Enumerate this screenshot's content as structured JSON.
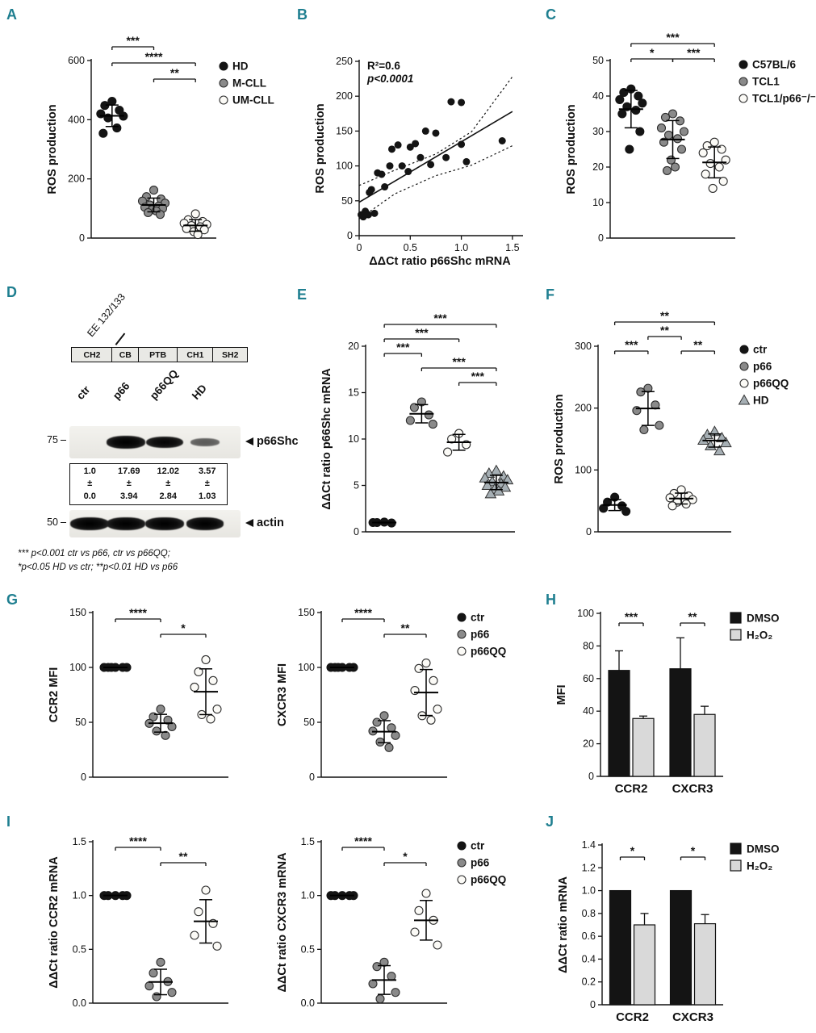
{
  "colors": {
    "panel_letter": "#1f7f90",
    "black": "#141414",
    "gray": "#8a8a8a",
    "open": "#fbfaf6",
    "triangle": "#a6afb4",
    "light": "#d9d9d9"
  },
  "panels": {
    "A": {
      "label": "A"
    },
    "B": {
      "label": "B"
    },
    "C": {
      "label": "C"
    },
    "D": {
      "label": "D",
      "mutation_label": "EE 132/133",
      "domains": [
        "CH2",
        "CB",
        "PTB",
        "CH1",
        "SH2"
      ],
      "lanes": [
        "ctr",
        "p66",
        "p66QQ",
        "HD"
      ],
      "mw_markers": [
        "75",
        "50"
      ],
      "band1_label": "p66Shc",
      "band2_label": "actin",
      "p66shc_bands": [
        0,
        1,
        0.9,
        0.42
      ],
      "actin_bands": [
        1,
        1,
        1,
        0.95
      ],
      "quant": [
        {
          "value": "1.0",
          "pm": "±",
          "sd": "0.0"
        },
        {
          "value": "17.69",
          "pm": "±",
          "sd": "3.94"
        },
        {
          "value": "12.02",
          "pm": "±",
          "sd": "2.84"
        },
        {
          "value": "3.57",
          "pm": "±",
          "sd": "1.03"
        }
      ],
      "footnote_line1": "*** p<0.001 ctr vs p66, ctr vs p66QQ;",
      "footnote_line2": "*p<0.05 HD vs ctr; **p<0.01 HD vs p66"
    },
    "E": {
      "label": "E"
    },
    "F": {
      "label": "F"
    },
    "G": {
      "label": "G"
    },
    "H": {
      "label": "H"
    },
    "I": {
      "label": "I"
    },
    "J": {
      "label": "J"
    }
  },
  "chart_data": [
    {
      "panel": "A",
      "type": "dotplot",
      "ylabel": "ROS production",
      "ylim": [
        0,
        600
      ],
      "yticks": [
        0,
        200,
        400,
        600
      ],
      "groups": [
        {
          "name": "HD",
          "marker": "black-circle",
          "values": [
            462,
            448,
            432,
            420,
            412,
            406,
            372,
            354
          ]
        },
        {
          "name": "M-CLL",
          "marker": "gray-circle",
          "values": [
            162,
            140,
            132,
            125,
            118,
            112,
            108,
            104,
            100,
            96,
            92,
            86,
            80
          ]
        },
        {
          "name": "UM-CLL",
          "marker": "open-circle",
          "values": [
            82,
            62,
            56,
            50,
            46,
            42,
            38,
            32,
            28,
            22,
            12
          ]
        }
      ],
      "sig": [
        {
          "a": 0,
          "b": 1,
          "label": "***",
          "level": 0
        },
        {
          "a": 0,
          "b": 2,
          "label": "****",
          "level": 1
        },
        {
          "a": 1,
          "b": 2,
          "label": "**",
          "level": 2
        }
      ],
      "legend": [
        {
          "label": "HD",
          "marker": "black-circle"
        },
        {
          "label": "M-CLL",
          "marker": "gray-circle"
        },
        {
          "label": "UM-CLL",
          "marker": "open-circle"
        }
      ]
    },
    {
      "panel": "B",
      "type": "scatter",
      "ylabel": "ROS production",
      "xlabel": "ΔΔCt ratio p66Shc mRNA",
      "ylim": [
        0,
        250
      ],
      "yticks": [
        0,
        50,
        100,
        150,
        200,
        250
      ],
      "xlim": [
        0,
        1.58
      ],
      "xticks": [
        0,
        0.5,
        1.0,
        1.5
      ],
      "xtick_labels": [
        "0",
        "0.5",
        "1.0",
        "1.5"
      ],
      "annotation": [
        "R²=0.6",
        "p<0.0001"
      ],
      "points": [
        [
          0.02,
          30
        ],
        [
          0.04,
          27
        ],
        [
          0.06,
          35
        ],
        [
          0.09,
          30
        ],
        [
          0.1,
          62
        ],
        [
          0.12,
          66
        ],
        [
          0.15,
          32
        ],
        [
          0.18,
          90
        ],
        [
          0.22,
          88
        ],
        [
          0.25,
          70
        ],
        [
          0.3,
          100
        ],
        [
          0.32,
          124
        ],
        [
          0.38,
          130
        ],
        [
          0.42,
          100
        ],
        [
          0.48,
          92
        ],
        [
          0.5,
          127
        ],
        [
          0.55,
          132
        ],
        [
          0.6,
          112
        ],
        [
          0.65,
          150
        ],
        [
          0.7,
          102
        ],
        [
          0.75,
          147
        ],
        [
          0.85,
          112
        ],
        [
          0.9,
          192
        ],
        [
          1.0,
          191
        ],
        [
          1.0,
          131
        ],
        [
          1.05,
          106
        ],
        [
          1.4,
          136
        ]
      ],
      "fit_line": {
        "x1": 0,
        "y1": 48,
        "x2": 1.5,
        "y2": 178
      },
      "ci_upper": [
        [
          0,
          72
        ],
        [
          0.35,
          94
        ],
        [
          0.75,
          117
        ],
        [
          1.1,
          149
        ],
        [
          1.5,
          228
        ]
      ],
      "ci_lower": [
        [
          0,
          24
        ],
        [
          0.35,
          60
        ],
        [
          0.75,
          86
        ],
        [
          1.1,
          101
        ],
        [
          1.5,
          129
        ]
      ]
    },
    {
      "panel": "C",
      "type": "dotplot",
      "ylabel": "ROS production",
      "ylim": [
        0,
        50
      ],
      "yticks": [
        0,
        10,
        20,
        30,
        40,
        50
      ],
      "groups": [
        {
          "name": "C57BL/6",
          "marker": "black-circle",
          "values": [
            42,
            41,
            40,
            39,
            38,
            37,
            36,
            35,
            30,
            25
          ]
        },
        {
          "name": "TCL1",
          "marker": "gray-circle",
          "values": [
            35,
            34,
            33,
            31,
            30,
            29,
            28,
            27,
            25,
            22,
            20,
            19
          ]
        },
        {
          "name": "TCL1/p66⁻/⁻",
          "marker": "open-circle",
          "values": [
            27,
            26,
            25,
            24,
            22,
            21,
            20,
            18,
            16,
            14
          ]
        }
      ],
      "sig": [
        {
          "a": 0,
          "b": 2,
          "label": "***",
          "level": 0
        },
        {
          "a": 0,
          "b": 1,
          "label": "*",
          "level": 1
        },
        {
          "a": 1,
          "b": 2,
          "label": "***",
          "level": 1
        }
      ],
      "legend": [
        {
          "label": "C57BL/6",
          "marker": "black-circle"
        },
        {
          "label": "TCL1",
          "marker": "gray-circle"
        },
        {
          "label": "TCL1/p66⁻/⁻",
          "marker": "open-circle"
        }
      ]
    },
    {
      "panel": "E",
      "type": "dotplot",
      "ylabel": "ΔΔCt ratio p66Shc mRNA",
      "ylim": [
        0,
        20
      ],
      "yticks": [
        0,
        5,
        10,
        15,
        20
      ],
      "groups": [
        {
          "name": "ctr",
          "marker": "black-circle",
          "values": [
            1.05,
            1.0,
            0.95,
            1.0
          ]
        },
        {
          "name": "p66",
          "marker": "gray-circle",
          "values": [
            14,
            13.4,
            12.6,
            12,
            11.6
          ]
        },
        {
          "name": "p66QQ",
          "marker": "open-circle",
          "values": [
            10.6,
            10,
            9.4,
            8.6
          ]
        },
        {
          "name": "HD",
          "marker": "gray-triangle",
          "values": [
            6.6,
            6.3,
            6.0,
            5.8,
            5.6,
            5.4,
            5.2,
            5.0,
            4.8,
            4.6,
            4.4,
            4.1
          ]
        }
      ],
      "sig": [
        {
          "a": 0,
          "b": 3,
          "label": "***",
          "level": 0
        },
        {
          "a": 0,
          "b": 2,
          "label": "***",
          "level": 1
        },
        {
          "a": 0,
          "b": 1,
          "label": "***",
          "level": 2
        },
        {
          "a": 1,
          "b": 3,
          "label": "***",
          "level": 3
        },
        {
          "a": 2,
          "b": 3,
          "label": "***",
          "level": 4
        }
      ]
    },
    {
      "panel": "F",
      "type": "dotplot",
      "ylabel": "ROS production",
      "ylim": [
        0,
        300
      ],
      "yticks": [
        0,
        100,
        200,
        300
      ],
      "groups": [
        {
          "name": "ctr",
          "marker": "black-circle",
          "values": [
            56,
            48,
            42,
            38,
            33
          ]
        },
        {
          "name": "p66",
          "marker": "gray-circle",
          "values": [
            232,
            226,
            205,
            196,
            172,
            165
          ]
        },
        {
          "name": "p66QQ",
          "marker": "open-circle",
          "values": [
            68,
            62,
            58,
            55,
            52,
            48,
            45,
            42
          ]
        },
        {
          "name": "HD",
          "marker": "gray-triangle",
          "values": [
            162,
            157,
            152,
            148,
            144,
            139,
            131
          ]
        }
      ],
      "sig": [
        {
          "a": 0,
          "b": 3,
          "label": "**",
          "level": 0
        },
        {
          "a": 1,
          "b": 2,
          "label": "**",
          "level": 1
        },
        {
          "a": 0,
          "b": 1,
          "label": "***",
          "level": 2
        },
        {
          "a": 2,
          "b": 3,
          "label": "**",
          "level": 2
        }
      ],
      "legend": [
        {
          "label": "ctr",
          "marker": "black-circle"
        },
        {
          "label": "p66",
          "marker": "gray-circle"
        },
        {
          "label": "p66QQ",
          "marker": "open-circle"
        },
        {
          "label": "HD",
          "marker": "gray-triangle"
        }
      ]
    },
    {
      "panel": "G1",
      "type": "dotplot",
      "ylabel": "CCR2 MFI",
      "ylim": [
        0,
        150
      ],
      "yticks": [
        0,
        50,
        100,
        150
      ],
      "groups": [
        {
          "name": "ctr",
          "marker": "black-circle",
          "values": [
            100,
            100,
            100,
            100,
            100,
            100
          ]
        },
        {
          "name": "p66",
          "marker": "gray-circle",
          "values": [
            62,
            55,
            52,
            49,
            46,
            42,
            38
          ]
        },
        {
          "name": "p66QQ",
          "marker": "open-circle",
          "values": [
            107,
            96,
            88,
            82,
            62,
            57,
            53
          ]
        }
      ],
      "sig": [
        {
          "a": 0,
          "b": 1,
          "label": "****",
          "level": 0
        },
        {
          "a": 1,
          "b": 2,
          "label": "*",
          "level": 1
        }
      ]
    },
    {
      "panel": "G2",
      "type": "dotplot",
      "ylabel": "CXCR3 MFI",
      "ylim": [
        0,
        150
      ],
      "yticks": [
        0,
        50,
        100,
        150
      ],
      "groups": [
        {
          "name": "ctr",
          "marker": "black-circle",
          "values": [
            100,
            100,
            100,
            100,
            100,
            100
          ]
        },
        {
          "name": "p66",
          "marker": "gray-circle",
          "values": [
            56,
            50,
            45,
            42,
            38,
            32,
            27
          ]
        },
        {
          "name": "p66QQ",
          "marker": "open-circle",
          "values": [
            104,
            99,
            88,
            79,
            62,
            56,
            52
          ]
        }
      ],
      "sig": [
        {
          "a": 0,
          "b": 1,
          "label": "****",
          "level": 0
        },
        {
          "a": 1,
          "b": 2,
          "label": "**",
          "level": 1
        }
      ],
      "legend": [
        {
          "label": "ctr",
          "marker": "black-circle"
        },
        {
          "label": "p66",
          "marker": "gray-circle"
        },
        {
          "label": "p66QQ",
          "marker": "open-circle"
        }
      ]
    },
    {
      "panel": "H",
      "type": "bar",
      "ylabel": "MFI",
      "ylim": [
        0,
        100
      ],
      "yticks": [
        0,
        20,
        40,
        60,
        80,
        100
      ],
      "categories": [
        "CCR2",
        "CXCR3"
      ],
      "series": [
        {
          "name": "DMSO",
          "fill": "dark",
          "values": [
            65,
            66
          ],
          "errors": [
            12,
            19
          ]
        },
        {
          "name": "H₂O₂",
          "fill": "light",
          "values": [
            35.5,
            38
          ],
          "errors": [
            1.5,
            5
          ]
        }
      ],
      "sig": [
        {
          "cat": 0,
          "label": "***"
        },
        {
          "cat": 1,
          "label": "**"
        }
      ],
      "legend": [
        {
          "label": "DMSO",
          "fill": "dark"
        },
        {
          "label": "H₂O₂",
          "fill": "light"
        }
      ]
    },
    {
      "panel": "I1",
      "type": "dotplot",
      "ylabel": "ΔΔCt ratio CCR2 mRNA",
      "ylim": [
        0,
        1.5
      ],
      "yticks": [
        0,
        0.5,
        1.0,
        1.5
      ],
      "ytick_labels": [
        "0.0",
        "0.5",
        "1.0",
        "1.5"
      ],
      "groups": [
        {
          "name": "ctr",
          "marker": "black-circle",
          "values": [
            1.0,
            1.0,
            1.0,
            1.0,
            1.0
          ]
        },
        {
          "name": "p66",
          "marker": "gray-circle",
          "values": [
            0.38,
            0.28,
            0.2,
            0.16,
            0.1,
            0.06
          ]
        },
        {
          "name": "p66QQ",
          "marker": "open-circle",
          "values": [
            1.05,
            0.85,
            0.74,
            0.63,
            0.53
          ]
        }
      ],
      "sig": [
        {
          "a": 0,
          "b": 1,
          "label": "****",
          "level": 0
        },
        {
          "a": 1,
          "b": 2,
          "label": "**",
          "level": 1
        }
      ]
    },
    {
      "panel": "I2",
      "type": "dotplot",
      "ylabel": "ΔΔCt ratio CXCR3 mRNA",
      "ylim": [
        0,
        1.5
      ],
      "yticks": [
        0,
        0.5,
        1.0,
        1.5
      ],
      "ytick_labels": [
        "0.0",
        "0.5",
        "1.0",
        "1.5"
      ],
      "groups": [
        {
          "name": "ctr",
          "marker": "black-circle",
          "values": [
            1.0,
            1.0,
            1.0,
            1.0,
            1.0
          ]
        },
        {
          "name": "p66",
          "marker": "gray-circle",
          "values": [
            0.38,
            0.34,
            0.25,
            0.18,
            0.1,
            0.04
          ]
        },
        {
          "name": "p66QQ",
          "marker": "open-circle",
          "values": [
            1.02,
            0.86,
            0.77,
            0.66,
            0.54
          ]
        }
      ],
      "sig": [
        {
          "a": 0,
          "b": 1,
          "label": "****",
          "level": 0
        },
        {
          "a": 1,
          "b": 2,
          "label": "*",
          "level": 1
        }
      ],
      "legend": [
        {
          "label": "ctr",
          "marker": "black-circle"
        },
        {
          "label": "p66",
          "marker": "gray-circle"
        },
        {
          "label": "p66QQ",
          "marker": "open-circle"
        }
      ]
    },
    {
      "panel": "J",
      "type": "bar",
      "ylabel": "ΔΔCt ratio mRNA",
      "ylim": [
        0,
        1.4
      ],
      "yticks": [
        0,
        0.2,
        0.4,
        0.6,
        0.8,
        1.0,
        1.2,
        1.4
      ],
      "ytick_labels": [
        "0",
        "0.2",
        "0.4",
        "0.6",
        "0.8",
        "1.0",
        "1.2",
        "1.4"
      ],
      "categories": [
        "CCR2",
        "CXCR3"
      ],
      "series": [
        {
          "name": "DMSO",
          "fill": "dark",
          "values": [
            1.0,
            1.0
          ],
          "errors": [
            0,
            0
          ]
        },
        {
          "name": "H₂O₂",
          "fill": "light",
          "values": [
            0.7,
            0.71
          ],
          "errors": [
            0.1,
            0.08
          ]
        }
      ],
      "sig": [
        {
          "cat": 0,
          "label": "*"
        },
        {
          "cat": 1,
          "label": "*"
        }
      ],
      "legend": [
        {
          "label": "DMSO",
          "fill": "dark"
        },
        {
          "label": "H₂O₂",
          "fill": "light"
        }
      ]
    }
  ]
}
